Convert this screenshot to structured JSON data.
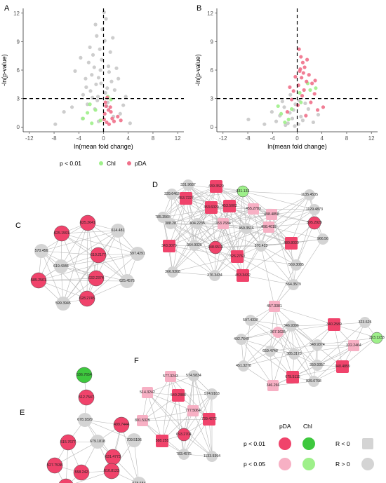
{
  "chart_data": [
    {
      "type": "scatter",
      "panel": "A",
      "title": "",
      "xlabel": "ln(mean fold change)",
      "ylabel": "-ln(p-value)",
      "xlim": [
        -13,
        13
      ],
      "ylim": [
        -0.5,
        12.5
      ],
      "x_ticks": [
        -12,
        -8,
        -4,
        0,
        4,
        8,
        12
      ],
      "y_ticks": [
        0,
        3,
        6,
        9,
        12
      ],
      "threshold_lines": {
        "x": 0,
        "y": 3
      },
      "series": [
        {
          "name": "",
          "color": "#c8c8c8",
          "points": [
            [
              -1.2,
              4.5
            ],
            [
              -0.8,
              5.2
            ],
            [
              -2.1,
              3.8
            ],
            [
              0.6,
              4.1
            ],
            [
              -1.5,
              6.3
            ],
            [
              -0.3,
              7.1
            ],
            [
              0.9,
              5.8
            ],
            [
              -2.8,
              4.2
            ],
            [
              -1.9,
              5.5
            ],
            [
              0.3,
              3.6
            ],
            [
              -0.6,
              8.2
            ],
            [
              -1.1,
              9.6
            ],
            [
              0.4,
              11.4
            ],
            [
              -0.2,
              10.3
            ],
            [
              1.3,
              4.8
            ],
            [
              -3.3,
              3.4
            ],
            [
              -2.4,
              6.8
            ],
            [
              0.8,
              6.4
            ],
            [
              -1.7,
              7.6
            ],
            [
              1.8,
              3.9
            ],
            [
              -0.9,
              3.2
            ],
            [
              -4.6,
              5.9
            ],
            [
              -1.3,
              10.8
            ],
            [
              0.2,
              9.1
            ],
            [
              2.4,
              5.1
            ],
            [
              -3.7,
              7.3
            ],
            [
              -0.5,
              6.0
            ],
            [
              1.1,
              7.9
            ],
            [
              -2.2,
              8.4
            ],
            [
              3.2,
              2.3
            ],
            [
              -5.1,
              2.1
            ],
            [
              -6.4,
              1.6
            ],
            [
              2.7,
              1.4
            ],
            [
              -1.4,
              1.9
            ],
            [
              0.7,
              2.6
            ],
            [
              -2.6,
              2.4
            ],
            [
              1.6,
              1.1
            ],
            [
              -0.8,
              0.6
            ],
            [
              4.3,
              0.4
            ],
            [
              -3.4,
              0.9
            ],
            [
              -7.8,
              0.3
            ],
            [
              3.6,
              3.2
            ],
            [
              -1.0,
              2.8
            ],
            [
              2.1,
              6.2
            ],
            [
              -2.9,
              5.1
            ],
            [
              0.1,
              12.1
            ],
            [
              -0.4,
              4.6
            ],
            [
              1.5,
              9.4
            ],
            [
              -1.8,
              3.1
            ],
            [
              0.5,
              2.2
            ]
          ]
        },
        {
          "name": "Chl",
          "color": "#9ef08a",
          "points": [
            [
              -3.3,
              0.9
            ],
            [
              -2.6,
              1.5
            ],
            [
              -1.9,
              0.4
            ],
            [
              -2.2,
              2.4
            ],
            [
              0.7,
              3.2
            ],
            [
              -1.3,
              1.8
            ],
            [
              -0.5,
              0.7
            ],
            [
              1.2,
              2.9
            ]
          ]
        },
        {
          "name": "pDA",
          "color": "#f0708a",
          "points": [
            [
              0.3,
              2.6
            ],
            [
              0.8,
              1.8
            ],
            [
              1.4,
              0.9
            ],
            [
              0.5,
              0.5
            ],
            [
              1.1,
              2.1
            ],
            [
              0.2,
              1.4
            ],
            [
              1.7,
              0.6
            ],
            [
              0.6,
              3.1
            ],
            [
              2.3,
              1.1
            ],
            [
              0.9,
              0.3
            ],
            [
              0.4,
              2.2
            ],
            [
              1.2,
              1.6
            ],
            [
              2.8,
              0.7
            ],
            [
              0.1,
              0.8
            ]
          ]
        }
      ]
    },
    {
      "type": "scatter",
      "panel": "B",
      "title": "",
      "xlabel": "ln(mean fold change)",
      "ylabel": "-ln(p-value)",
      "xlim": [
        -13,
        13
      ],
      "ylim": [
        -0.5,
        12.5
      ],
      "x_ticks": [
        -12,
        -8,
        -4,
        0,
        4,
        8,
        12
      ],
      "y_ticks": [
        0,
        3,
        6,
        9,
        12
      ],
      "threshold_lines": {
        "x": 0,
        "y": 3
      },
      "series": [
        {
          "name": "",
          "color": "#c8c8c8",
          "points": [
            [
              -1.2,
              1.5
            ],
            [
              -0.8,
              0.9
            ],
            [
              -2.1,
              2.1
            ],
            [
              0.6,
              1.1
            ],
            [
              -1.5,
              0.4
            ],
            [
              -0.3,
              2.4
            ],
            [
              0.9,
              0.7
            ],
            [
              -2.8,
              1.2
            ],
            [
              -1.9,
              0.2
            ],
            [
              0.3,
              2.8
            ],
            [
              -0.6,
              1.8
            ],
            [
              -3.4,
              0.6
            ],
            [
              -4.1,
              1.6
            ],
            [
              1.8,
              1.9
            ],
            [
              -5.3,
              0.3
            ],
            [
              -7.9,
              0.8
            ],
            [
              2.6,
              0.5
            ],
            [
              -0.4,
              0.1
            ],
            [
              3.4,
              1.3
            ],
            [
              -2.4,
              2.7
            ],
            [
              1.3,
              2.5
            ],
            [
              -1.1,
              3.4
            ],
            [
              0.2,
              0.3
            ]
          ]
        },
        {
          "name": "Chl",
          "color": "#9ef08a",
          "points": [
            [
              -2.6,
              1.4
            ],
            [
              -1.4,
              0.8
            ],
            [
              0.6,
              2.6
            ],
            [
              2.1,
              3.9
            ],
            [
              -3.1,
              2.2
            ],
            [
              -0.9,
              1.9
            ],
            [
              1.7,
              4.6
            ],
            [
              -2.0,
              0.5
            ],
            [
              0.4,
              3.6
            ],
            [
              3.0,
              4.1
            ]
          ]
        },
        {
          "name": "pDA",
          "color": "#f0708a",
          "points": [
            [
              0.3,
              8.2
            ],
            [
              0.6,
              7.4
            ],
            [
              0.9,
              6.8
            ],
            [
              0.4,
              5.9
            ],
            [
              1.2,
              6.3
            ],
            [
              0.7,
              5.2
            ],
            [
              1.5,
              4.8
            ],
            [
              0.2,
              4.4
            ],
            [
              1.9,
              5.5
            ],
            [
              2.4,
              4.6
            ],
            [
              -0.6,
              3.8
            ],
            [
              -1.2,
              4.2
            ],
            [
              1.1,
              3.9
            ],
            [
              0.8,
              3.3
            ],
            [
              2.8,
              3.5
            ],
            [
              -0.9,
              2.9
            ],
            [
              0.5,
              6.1
            ],
            [
              1.6,
              7.1
            ],
            [
              -0.3,
              5.3
            ],
            [
              1.0,
              5.7
            ],
            [
              2.2,
              2.6
            ],
            [
              3.3,
              1.8
            ],
            [
              4.2,
              2.1
            ],
            [
              1.4,
              1.2
            ],
            [
              -1.6,
              1.6
            ],
            [
              0.1,
              2.3
            ],
            [
              2.9,
              4.9
            ]
          ]
        }
      ]
    },
    {
      "type": "network",
      "panel": "C",
      "nodes": [
        {
          "id": "625.2641",
          "group": "pDA p<0.01",
          "shape": "circle"
        },
        {
          "id": "625.1591",
          "group": "pDA p<0.01",
          "shape": "circle"
        },
        {
          "id": "614.481",
          "group": "R>0",
          "shape": "circle"
        },
        {
          "id": "570.456",
          "group": "R>0",
          "shape": "circle"
        },
        {
          "id": "610.2177",
          "group": "pDA p<0.01",
          "shape": "circle"
        },
        {
          "id": "597.4291",
          "group": "R>0",
          "shape": "circle"
        },
        {
          "id": "619.4346",
          "group": "R>0",
          "shape": "circle"
        },
        {
          "id": "632.2374",
          "group": "pDA p<0.01",
          "shape": "circle"
        },
        {
          "id": "585.2501",
          "group": "pDA p<0.01",
          "shape": "circle"
        },
        {
          "id": "625.4576",
          "group": "R>0",
          "shape": "circle"
        },
        {
          "id": "628.2745",
          "group": "pDA p<0.01",
          "shape": "circle"
        },
        {
          "id": "599.3945",
          "group": "R>0",
          "shape": "circle"
        }
      ]
    },
    {
      "type": "network",
      "panel": "D",
      "nodes": [
        {
          "id": "331.9687",
          "group": "R>0"
        },
        {
          "id": "439.3529",
          "group": "pDA p<0.01"
        },
        {
          "id": "331.133",
          "group": "Chl p<0.05"
        },
        {
          "id": "339.6462",
          "group": "R>0"
        },
        {
          "id": "453.7227",
          "group": "pDA p<0.01"
        },
        {
          "id": "453.6029",
          "group": "pDA p<0.01"
        },
        {
          "id": "453.5002",
          "group": "pDA p<0.01"
        },
        {
          "id": "455.2783",
          "group": "pDA p<0.05"
        },
        {
          "id": "785.3565",
          "group": "R>0"
        },
        {
          "id": "388.28",
          "group": "R>0"
        },
        {
          "id": "404.2235",
          "group": "R>0"
        },
        {
          "id": "453.7684",
          "group": "pDA p<0.05"
        },
        {
          "id": "459.3516",
          "group": "R>0"
        },
        {
          "id": "498.4858",
          "group": "pDA p<0.05"
        },
        {
          "id": "498.4018",
          "group": "pDA p<0.05"
        },
        {
          "id": "1135.4535",
          "group": "R>0"
        },
        {
          "id": "1129.4873",
          "group": "R>0"
        },
        {
          "id": "595.2929",
          "group": "pDA p<0.01"
        },
        {
          "id": "966.56",
          "group": "R>0"
        },
        {
          "id": "343.3079",
          "group": "pDA p<0.01"
        },
        {
          "id": "364.9326",
          "group": "R>0"
        },
        {
          "id": "348.6513",
          "group": "pDA p<0.01"
        },
        {
          "id": "326.2760",
          "group": "pDA p<0.01"
        },
        {
          "id": "570.423",
          "group": "R>0"
        },
        {
          "id": "480.8030",
          "group": "pDA p<0.01"
        },
        {
          "id": "366.9308",
          "group": "R>0"
        },
        {
          "id": "376.3434",
          "group": "R>0"
        },
        {
          "id": "453.3432",
          "group": "pDA p<0.01"
        },
        {
          "id": "569.3085",
          "group": "R>0"
        },
        {
          "id": "564.3579",
          "group": "R>0"
        },
        {
          "id": "457.3381",
          "group": "pDA p<0.05"
        },
        {
          "id": "597.4338",
          "group": "R>0"
        },
        {
          "id": "367.1635",
          "group": "pDA p<0.05"
        },
        {
          "id": "346.9396",
          "group": "R>0"
        },
        {
          "id": "340.2589",
          "group": "pDA p<0.01"
        },
        {
          "id": "323.625",
          "group": "R>0"
        },
        {
          "id": "323.1233",
          "group": "Chl p<0.05"
        },
        {
          "id": "402.7649",
          "group": "R>0"
        },
        {
          "id": "348.9374",
          "group": "R>0"
        },
        {
          "id": "322.2464",
          "group": "pDA p<0.05"
        },
        {
          "id": "659.4748",
          "group": "R>0"
        },
        {
          "id": "385.3173",
          "group": "R>0"
        },
        {
          "id": "451.3278",
          "group": "R>0"
        },
        {
          "id": "350.9357",
          "group": "R>0"
        },
        {
          "id": "340.4859",
          "group": "pDA p<0.01"
        },
        {
          "id": "679.5115",
          "group": "pDA p<0.01"
        },
        {
          "id": "839.0798",
          "group": "R>0"
        },
        {
          "id": "346.266",
          "group": "pDA p<0.05"
        }
      ]
    },
    {
      "type": "network",
      "panel": "F",
      "nodes": [
        {
          "id": "577.3243",
          "group": "pDA p<0.05"
        },
        {
          "id": "574.5834",
          "group": "R>0"
        },
        {
          "id": "514.3242",
          "group": "pDA p<0.05"
        },
        {
          "id": "549.2888",
          "group": "pDA p<0.01"
        },
        {
          "id": "574.9163",
          "group": "R>0"
        },
        {
          "id": "777.5064",
          "group": "pDA p<0.05"
        },
        {
          "id": "801.5325",
          "group": "pDA p<0.05"
        },
        {
          "id": "739.4272",
          "group": "pDA p<0.01"
        },
        {
          "id": "693.2704",
          "group": "pDA p<0.01"
        },
        {
          "id": "588.255",
          "group": "pDA p<0.01"
        },
        {
          "id": "783.4575",
          "group": "R>0"
        },
        {
          "id": "1133.9394",
          "group": "R>0"
        }
      ]
    },
    {
      "type": "network",
      "panel": "E",
      "nodes": [
        {
          "id": "536.7654",
          "group": "Chl p<0.01"
        },
        {
          "id": "512.7547",
          "group": "pDA p<0.01"
        },
        {
          "id": "678.1829",
          "group": "R>0"
        },
        {
          "id": "499.7444",
          "group": "pDA p<0.01"
        },
        {
          "id": "515.7677",
          "group": "pDA p<0.01"
        },
        {
          "id": "679.1818",
          "group": "R>0"
        },
        {
          "id": "709.5196",
          "group": "R>0"
        },
        {
          "id": "631.4773",
          "group": "pDA p<0.01"
        },
        {
          "id": "527.7538",
          "group": "pDA p<0.01"
        },
        {
          "id": "558.242",
          "group": "pDA p<0.01"
        },
        {
          "id": "610.8123",
          "group": "pDA p<0.01"
        },
        {
          "id": "678.684",
          "group": "R>0"
        },
        {
          "id": "529.7631",
          "group": "pDA p<0.01"
        }
      ]
    }
  ],
  "panel_letters": {
    "a": "A",
    "b": "B",
    "c": "C",
    "d": "D",
    "e": "E",
    "f": "F"
  },
  "scatter_legend": {
    "label": "p  <  0.01",
    "chl": "Chl",
    "pda": "pDA"
  },
  "network_legend": {
    "pda_header": "pDA",
    "chl_header": "Chl",
    "p001": "p < 0.01",
    "p005": "p < 0.05",
    "r_neg": "R < 0",
    "r_pos": "R > 0"
  },
  "colors": {
    "pda_strong": "#f0436b",
    "pda_light": "#f7b0c4",
    "chl_strong": "#3ec83e",
    "chl_light": "#9ef08a",
    "neutral": "#d4d4d4",
    "edge": "#b8b8b8"
  }
}
